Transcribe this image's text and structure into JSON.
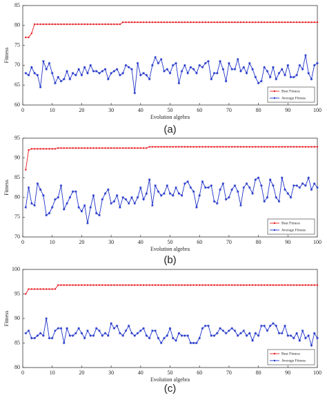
{
  "chart_data": [
    {
      "type": "line",
      "panel_label": "(a)",
      "xlabel": "Evolution algebra",
      "ylabel": "Fitness",
      "x": [
        1,
        2,
        3,
        4,
        5,
        6,
        7,
        8,
        9,
        10,
        11,
        12,
        13,
        14,
        15,
        16,
        17,
        18,
        19,
        20,
        21,
        22,
        23,
        24,
        25,
        26,
        27,
        28,
        29,
        30,
        31,
        32,
        33,
        34,
        35,
        36,
        37,
        38,
        39,
        40,
        41,
        42,
        43,
        44,
        45,
        46,
        47,
        48,
        49,
        50,
        51,
        52,
        53,
        54,
        55,
        56,
        57,
        58,
        59,
        60,
        61,
        62,
        63,
        64,
        65,
        66,
        67,
        68,
        69,
        70,
        71,
        72,
        73,
        74,
        75,
        76,
        77,
        78,
        79,
        80,
        81,
        82,
        83,
        84,
        85,
        86,
        87,
        88,
        89,
        90,
        91,
        92,
        93,
        94,
        95,
        96,
        97,
        98,
        99,
        100
      ],
      "series": [
        {
          "name": "Best Fitness",
          "color": "#e8191e",
          "marker": "dot",
          "values": [
            77,
            77,
            78,
            80.3,
            80.3,
            80.3,
            80.3,
            80.3,
            80.3,
            80.3,
            80.3,
            80.3,
            80.3,
            80.3,
            80.3,
            80.3,
            80.3,
            80.3,
            80.3,
            80.3,
            80.3,
            80.3,
            80.3,
            80.3,
            80.3,
            80.3,
            80.3,
            80.3,
            80.3,
            80.3,
            80.3,
            80.3,
            80.3,
            80.8,
            80.8,
            80.8,
            80.8,
            80.8,
            80.8,
            80.8,
            80.8,
            80.8,
            80.8,
            80.8,
            80.8,
            80.8,
            80.8,
            80.8,
            80.8,
            80.8,
            80.8,
            80.8,
            80.8,
            80.8,
            80.8,
            80.8,
            80.8,
            80.8,
            80.8,
            80.8,
            80.8,
            80.8,
            80.8,
            80.8,
            80.8,
            80.8,
            80.8,
            80.8,
            80.8,
            80.8,
            80.8,
            80.8,
            80.8,
            80.8,
            80.8,
            80.8,
            80.8,
            80.8,
            80.8,
            80.8,
            80.8,
            80.8,
            80.8,
            80.8,
            80.8,
            80.8,
            80.8,
            80.8,
            80.8,
            80.8,
            80.8,
            80.8,
            80.8,
            80.8,
            80.8,
            80.8,
            80.8,
            80.8,
            80.8,
            80.8
          ]
        },
        {
          "name": "Average Fitness",
          "color": "#1e32c8",
          "marker": "star",
          "values": [
            68,
            67.5,
            69.5,
            68,
            67.5,
            64.5,
            71,
            69,
            70.5,
            68,
            65.5,
            67,
            66,
            66.5,
            68.5,
            66.5,
            68,
            67.5,
            69,
            67.5,
            69.5,
            68,
            70,
            68.5,
            68.5,
            68,
            68.5,
            69,
            66.5,
            68,
            68.5,
            69,
            67.5,
            68,
            70,
            69.5,
            69,
            63,
            70.5,
            67.5,
            68,
            67.5,
            66.5,
            70,
            72,
            70.5,
            71.5,
            68.5,
            69,
            68,
            70,
            70.5,
            65.5,
            68.5,
            70,
            68,
            69.5,
            69,
            68,
            70,
            69.5,
            70.5,
            71,
            66.5,
            68,
            68,
            71,
            69,
            66,
            70.5,
            69,
            69,
            71.5,
            68.5,
            69.5,
            68,
            70.5,
            69,
            67,
            65.5,
            66,
            69.5,
            68.5,
            67,
            69.5,
            66.5,
            68,
            69,
            67.5,
            70,
            67,
            67,
            67.5,
            70,
            69,
            72.5,
            68,
            66.5,
            70,
            70.5
          ]
        }
      ],
      "xlim": [
        0,
        100
      ],
      "xticks": [
        0,
        10,
        20,
        30,
        40,
        50,
        60,
        70,
        80,
        90,
        100
      ],
      "ylim": [
        60,
        85
      ],
      "yticks": [
        60,
        65,
        70,
        75,
        80,
        85
      ],
      "legend": "lower right"
    },
    {
      "type": "line",
      "panel_label": "(b)",
      "xlabel": "Evolution algebra",
      "ylabel": "Fitness",
      "x": [
        1,
        2,
        3,
        4,
        5,
        6,
        7,
        8,
        9,
        10,
        11,
        12,
        13,
        14,
        15,
        16,
        17,
        18,
        19,
        20,
        21,
        22,
        23,
        24,
        25,
        26,
        27,
        28,
        29,
        30,
        31,
        32,
        33,
        34,
        35,
        36,
        37,
        38,
        39,
        40,
        41,
        42,
        43,
        44,
        45,
        46,
        47,
        48,
        49,
        50,
        51,
        52,
        53,
        54,
        55,
        56,
        57,
        58,
        59,
        60,
        61,
        62,
        63,
        64,
        65,
        66,
        67,
        68,
        69,
        70,
        71,
        72,
        73,
        74,
        75,
        76,
        77,
        78,
        79,
        80,
        81,
        82,
        83,
        84,
        85,
        86,
        87,
        88,
        89,
        90,
        91,
        92,
        93,
        94,
        95,
        96,
        97,
        98,
        99,
        100
      ],
      "series": [
        {
          "name": "Best Fitness",
          "color": "#e8191e",
          "marker": "dot",
          "values": [
            87,
            92,
            92.3,
            92.3,
            92.3,
            92.3,
            92.3,
            92.3,
            92.3,
            92.3,
            92.3,
            92.5,
            92.5,
            92.5,
            92.5,
            92.5,
            92.5,
            92.5,
            92.5,
            92.5,
            92.5,
            92.5,
            92.5,
            92.5,
            92.5,
            92.5,
            92.5,
            92.5,
            92.5,
            92.5,
            92.5,
            92.5,
            92.5,
            92.5,
            92.5,
            92.5,
            92.5,
            92.5,
            92.5,
            92.5,
            92.5,
            92.5,
            92.8,
            92.8,
            92.8,
            92.8,
            92.8,
            92.8,
            92.8,
            92.8,
            92.8,
            92.8,
            92.8,
            92.8,
            92.8,
            92.8,
            92.8,
            92.8,
            92.8,
            92.8,
            92.8,
            92.8,
            92.8,
            92.8,
            92.8,
            92.8,
            92.8,
            92.8,
            92.8,
            92.8,
            92.8,
            92.8,
            92.8,
            92.8,
            92.8,
            92.8,
            92.8,
            92.8,
            92.8,
            92.8,
            92.8,
            92.8,
            92.8,
            92.8,
            92.8,
            92.8,
            92.8,
            92.8,
            92.8,
            92.8,
            92.8,
            92.8,
            92.8,
            92.8,
            92.8,
            92.8,
            92.8,
            92.8,
            92.8,
            92.8
          ]
        },
        {
          "name": "Average Fitness",
          "color": "#1e32c8",
          "marker": "star",
          "values": [
            77.5,
            82.5,
            78.5,
            78,
            83.5,
            82,
            80.5,
            75.5,
            76,
            77.5,
            79.5,
            80,
            83,
            77,
            78.5,
            80,
            81.5,
            81.5,
            77.5,
            76.5,
            78,
            73.5,
            77.5,
            80.5,
            76,
            75.5,
            79.5,
            81,
            82,
            78.5,
            79,
            80.5,
            77.5,
            80,
            79.5,
            78.5,
            80,
            78.5,
            80,
            82.5,
            79.5,
            81,
            84.5,
            78,
            83,
            81.5,
            80.5,
            81,
            83,
            81,
            80.5,
            82.5,
            81,
            80.5,
            83.5,
            84,
            82.5,
            81.5,
            77.5,
            80.5,
            84,
            82.5,
            82.5,
            83,
            79,
            78.5,
            82,
            83.5,
            79.5,
            80,
            82,
            83,
            81.5,
            78,
            82.5,
            83.5,
            82.5,
            81,
            84.5,
            85,
            83,
            79,
            80,
            84.5,
            83,
            80,
            79,
            85,
            82,
            81,
            80,
            83,
            83,
            82.5,
            83.5,
            83,
            85,
            82,
            83.5,
            82.5
          ]
        }
      ],
      "xlim": [
        0,
        100
      ],
      "xticks": [
        0,
        10,
        20,
        30,
        40,
        50,
        60,
        70,
        80,
        90,
        100
      ],
      "ylim": [
        70,
        95
      ],
      "yticks": [
        70,
        75,
        80,
        85,
        90,
        95
      ],
      "legend": "lower right"
    },
    {
      "type": "line",
      "panel_label": "(c)",
      "xlabel": "Evolution algebra",
      "ylabel": "Fitness",
      "x": [
        1,
        2,
        3,
        4,
        5,
        6,
        7,
        8,
        9,
        10,
        11,
        12,
        13,
        14,
        15,
        16,
        17,
        18,
        19,
        20,
        21,
        22,
        23,
        24,
        25,
        26,
        27,
        28,
        29,
        30,
        31,
        32,
        33,
        34,
        35,
        36,
        37,
        38,
        39,
        40,
        41,
        42,
        43,
        44,
        45,
        46,
        47,
        48,
        49,
        50,
        51,
        52,
        53,
        54,
        55,
        56,
        57,
        58,
        59,
        60,
        61,
        62,
        63,
        64,
        65,
        66,
        67,
        68,
        69,
        70,
        71,
        72,
        73,
        74,
        75,
        76,
        77,
        78,
        79,
        80,
        81,
        82,
        83,
        84,
        85,
        86,
        87,
        88,
        89,
        90,
        91,
        92,
        93,
        94,
        95,
        96,
        97,
        98,
        99,
        100
      ],
      "series": [
        {
          "name": "Best Fitness",
          "color": "#e8191e",
          "marker": "dot",
          "values": [
            95,
            96,
            96,
            96,
            96,
            96,
            96,
            96,
            96,
            96,
            96,
            96.8,
            96.8,
            96.8,
            96.8,
            96.8,
            96.8,
            96.8,
            96.8,
            96.8,
            96.8,
            96.8,
            96.8,
            96.8,
            96.8,
            96.8,
            96.8,
            96.8,
            96.8,
            96.8,
            96.8,
            96.8,
            96.8,
            96.8,
            96.8,
            96.8,
            96.8,
            96.8,
            96.8,
            96.8,
            96.8,
            96.8,
            96.8,
            96.8,
            96.8,
            96.8,
            96.8,
            96.8,
            96.8,
            96.8,
            96.8,
            96.8,
            96.8,
            96.8,
            96.8,
            96.8,
            96.8,
            96.8,
            96.8,
            96.8,
            96.8,
            96.8,
            96.8,
            96.8,
            96.8,
            96.8,
            96.8,
            96.8,
            96.8,
            96.8,
            96.8,
            96.8,
            96.8,
            96.8,
            96.8,
            96.8,
            96.8,
            96.8,
            96.8,
            96.8,
            96.8,
            96.8,
            96.8,
            96.8,
            96.8,
            96.8,
            96.8,
            96.8,
            96.8,
            96.8,
            96.8,
            96.8,
            96.8,
            96.8,
            96.8,
            96.8,
            96.8,
            96.8,
            96.8,
            96.8
          ]
        },
        {
          "name": "Average Fitness",
          "color": "#1e32c8",
          "marker": "star",
          "values": [
            87,
            87.5,
            86,
            86,
            86.5,
            87,
            86.5,
            90,
            86,
            86,
            87.5,
            88,
            88,
            85,
            88,
            86.5,
            86.5,
            87,
            88,
            87,
            86,
            87.5,
            86.5,
            86.5,
            88,
            87.5,
            86.5,
            87,
            86.5,
            89,
            88,
            88.5,
            87,
            86.5,
            87.5,
            88.5,
            87,
            86.5,
            87,
            87.5,
            88,
            86.5,
            86,
            87.5,
            87.5,
            86,
            85,
            86,
            86.5,
            88,
            86,
            85.5,
            87,
            86.5,
            86.5,
            86.5,
            85,
            85,
            85,
            86,
            88,
            88.5,
            88.5,
            86.5,
            86.5,
            87,
            88,
            87.5,
            87,
            87.5,
            88,
            87.5,
            86.5,
            87,
            87.5,
            86.5,
            87,
            85.5,
            87,
            86.5,
            88.5,
            88.5,
            87.5,
            88.5,
            89,
            88.5,
            87,
            87,
            88.5,
            86.5,
            86.5,
            86,
            87,
            85.5,
            87.5,
            86,
            86.5,
            84.5,
            87,
            86
          ]
        }
      ],
      "xlim": [
        0,
        100
      ],
      "xticks": [
        0,
        10,
        20,
        30,
        40,
        50,
        60,
        70,
        80,
        90,
        100
      ],
      "ylim": [
        80,
        100
      ],
      "yticks": [
        80,
        85,
        90,
        95,
        100
      ],
      "legend": "lower right"
    }
  ]
}
